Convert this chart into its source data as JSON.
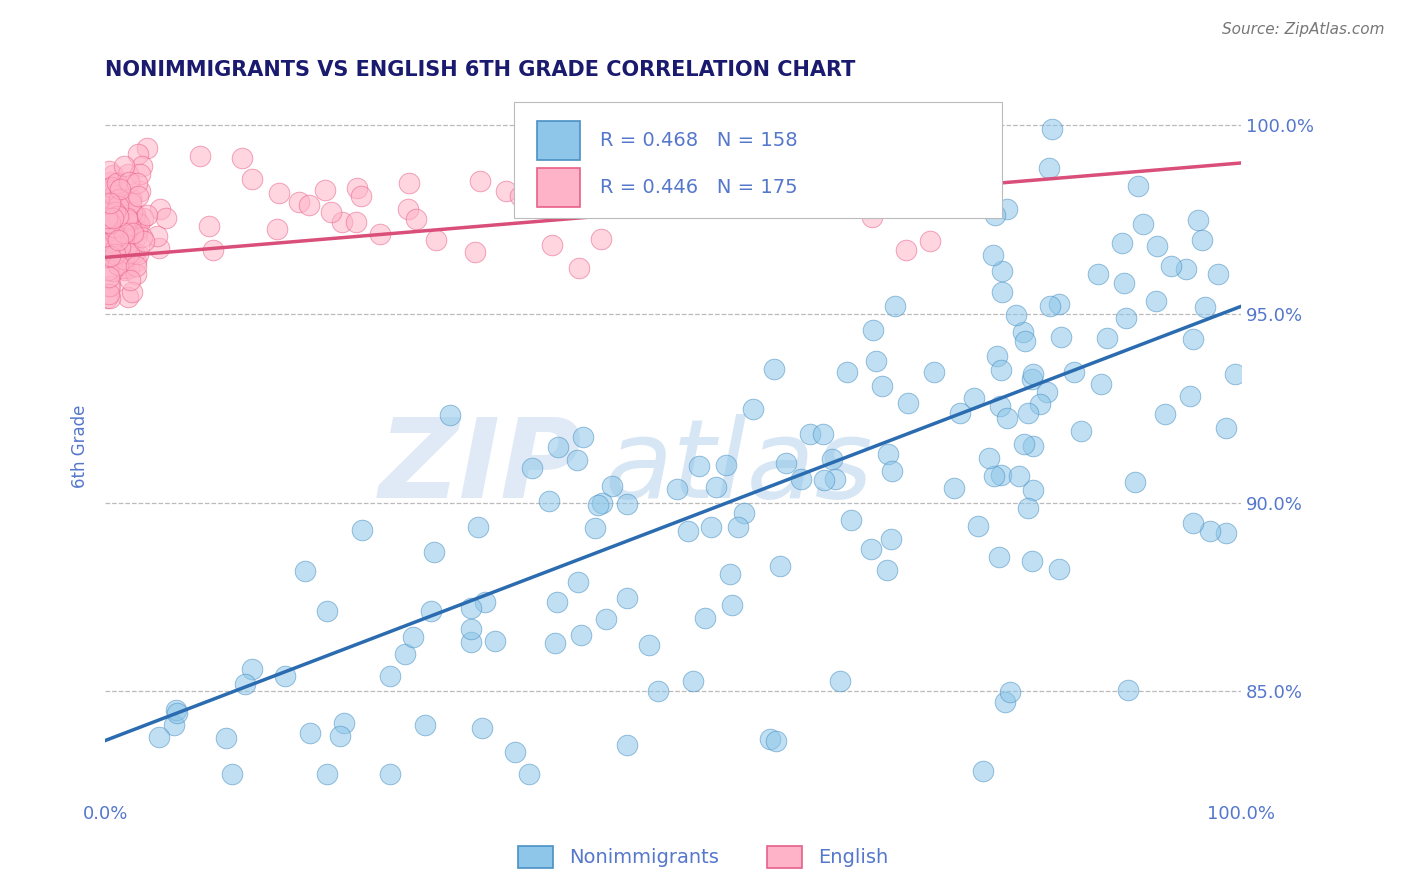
{
  "title": "NONIMMIGRANTS VS ENGLISH 6TH GRADE CORRELATION CHART",
  "source": "Source: ZipAtlas.com",
  "ylabel": "6th Grade",
  "xlim": [
    0.0,
    1.0
  ],
  "ylim": [
    0.822,
    1.008
  ],
  "yticks": [
    0.85,
    0.9,
    0.95,
    1.0
  ],
  "ytick_labels": [
    "85.0%",
    "90.0%",
    "95.0%",
    "100.0%"
  ],
  "xtick_labels": [
    "0.0%",
    "100.0%"
  ],
  "blue_color": "#8dc6e8",
  "pink_color": "#ffb3c8",
  "blue_edge_color": "#4a90c4",
  "pink_edge_color": "#e8608a",
  "blue_line_color": "#2b6cb0",
  "pink_line_color": "#d94f7a",
  "blue_R": 0.468,
  "blue_N": 158,
  "pink_R": 0.446,
  "pink_N": 175,
  "legend_blue_label": "Nonimmigrants",
  "legend_pink_label": "English",
  "watermark_zip": "ZIP",
  "watermark_atlas": "atlas",
  "grid_color": "#bbbbbb",
  "title_color": "#1a1a6e",
  "axis_label_color": "#5577cc",
  "tick_color": "#5577cc",
  "background": "#ffffff",
  "legend_box_color": "#eeeeee",
  "legend_edge_color": "#bbbbbb"
}
